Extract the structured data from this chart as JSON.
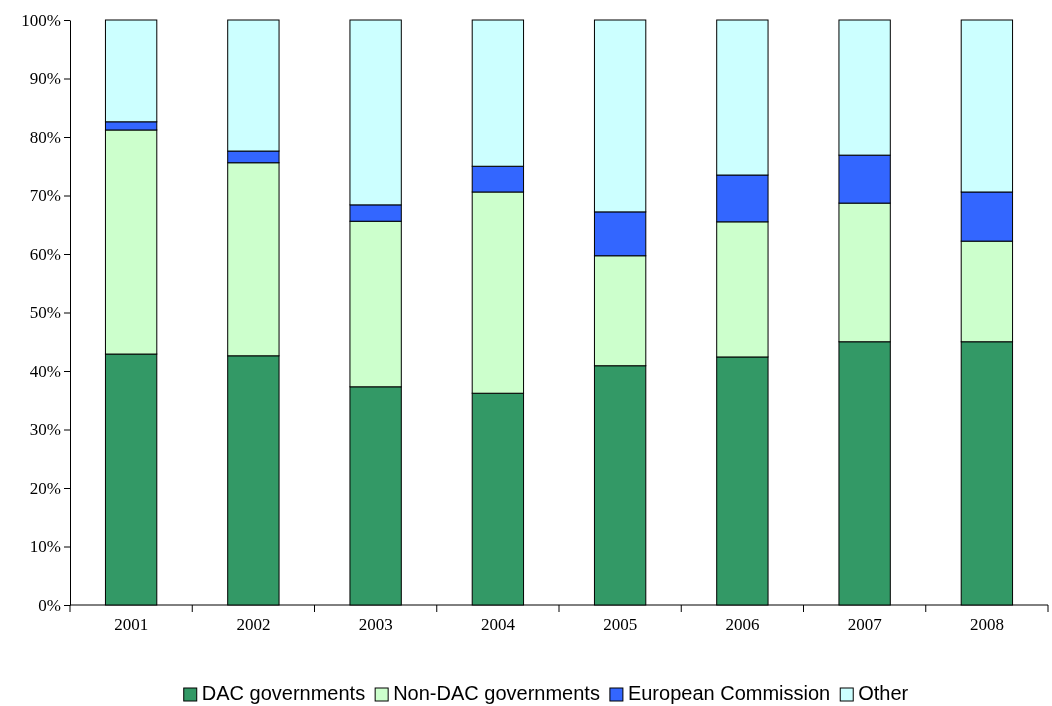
{
  "chart_data": {
    "type": "bar",
    "stacked": true,
    "categories": [
      "2001",
      "2002",
      "2003",
      "2004",
      "2005",
      "2006",
      "2007",
      "2008"
    ],
    "series": [
      {
        "name": "DAC governments",
        "color": "#339966",
        "values": [
          42.9,
          42.6,
          37.3,
          36.2,
          40.9,
          42.4,
          45.0,
          45.0
        ]
      },
      {
        "name": "Non-DAC governments",
        "color": "#ccffcc",
        "values": [
          38.3,
          33.0,
          28.3,
          34.4,
          18.8,
          23.1,
          23.7,
          17.2
        ]
      },
      {
        "name": "European Commission",
        "color": "#3366ff",
        "values": [
          1.4,
          2.0,
          2.8,
          4.4,
          7.5,
          8.0,
          8.2,
          8.4
        ]
      },
      {
        "name": "Other",
        "color": "#ccffff",
        "values": [
          17.4,
          22.4,
          31.6,
          25.0,
          32.8,
          26.5,
          23.1,
          29.4
        ]
      }
    ],
    "ylim": [
      0,
      100
    ],
    "yticks": [
      {
        "value": 0,
        "label": "0%"
      },
      {
        "value": 10,
        "label": "10%"
      },
      {
        "value": 20,
        "label": "20%"
      },
      {
        "value": 30,
        "label": "30%"
      },
      {
        "value": 40,
        "label": "40%"
      },
      {
        "value": 50,
        "label": "50%"
      },
      {
        "value": 60,
        "label": "60%"
      },
      {
        "value": 70,
        "label": "70%"
      },
      {
        "value": 80,
        "label": "80%"
      },
      {
        "value": 90,
        "label": "90%"
      },
      {
        "value": 100,
        "label": "100%"
      }
    ],
    "grid": false,
    "legend": "bottom"
  }
}
